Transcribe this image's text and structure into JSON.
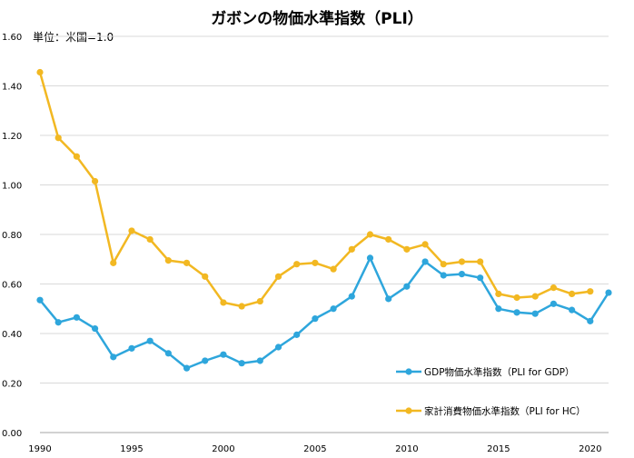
{
  "chart_data": {
    "type": "line",
    "title": "ガボンの物価水準指数（PLI）",
    "unit_note": "単位：米国=1.0",
    "xlabel": "",
    "ylabel": "",
    "xlim": [
      1990,
      2021
    ],
    "ylim": [
      0,
      1.6
    ],
    "grid": true,
    "legend_position": "lower-right",
    "x_ticks": [
      1990,
      1995,
      2000,
      2005,
      2010,
      2015,
      2020
    ],
    "y_ticks": [
      0,
      0.2,
      0.4,
      0.6,
      0.8,
      1.0,
      1.2,
      1.4,
      1.6
    ],
    "x_tick_labels": [
      "1990",
      "1995",
      "2000",
      "2005",
      "2010",
      "2015",
      "2020"
    ],
    "y_tick_labels": [
      "0.00",
      "0.20",
      "0.40",
      "0.60",
      "0.80",
      "1.00",
      "1.20",
      "1.40",
      "1.60"
    ],
    "series": [
      {
        "name": "GDP物価水準指数（PLI for GDP）",
        "color": "#2ea6dc",
        "x": [
          1990,
          1991,
          1992,
          1993,
          1994,
          1995,
          1996,
          1997,
          1998,
          1999,
          2000,
          2001,
          2002,
          2003,
          2004,
          2005,
          2006,
          2007,
          2008,
          2009,
          2010,
          2011,
          2012,
          2013,
          2014,
          2015,
          2016,
          2017,
          2018,
          2019,
          2020,
          2021
        ],
        "values": [
          0.535,
          0.445,
          0.465,
          0.42,
          0.305,
          0.34,
          0.37,
          0.32,
          0.26,
          0.29,
          0.315,
          0.28,
          0.29,
          0.345,
          0.395,
          0.46,
          0.5,
          0.55,
          0.705,
          0.54,
          0.59,
          0.69,
          0.635,
          0.64,
          0.625,
          0.5,
          0.485,
          0.48,
          0.52,
          0.495,
          0.45,
          0.565
        ]
      },
      {
        "name": "家計消費物価水準指数（PLI for HC）",
        "color": "#f2b822",
        "x": [
          1990,
          1991,
          1992,
          1993,
          1994,
          1995,
          1996,
          1997,
          1998,
          1999,
          2000,
          2001,
          2002,
          2003,
          2004,
          2005,
          2006,
          2007,
          2008,
          2009,
          2010,
          2011,
          2012,
          2013,
          2014,
          2015,
          2016,
          2017,
          2018,
          2019,
          2020
        ],
        "values": [
          1.455,
          1.19,
          1.115,
          1.015,
          0.685,
          0.815,
          0.78,
          0.695,
          0.685,
          0.63,
          0.525,
          0.51,
          0.53,
          0.63,
          0.68,
          0.685,
          0.66,
          0.74,
          0.8,
          0.78,
          0.74,
          0.76,
          0.68,
          0.69,
          0.69,
          0.56,
          0.545,
          0.55,
          0.585,
          0.56,
          0.57
        ]
      }
    ]
  }
}
